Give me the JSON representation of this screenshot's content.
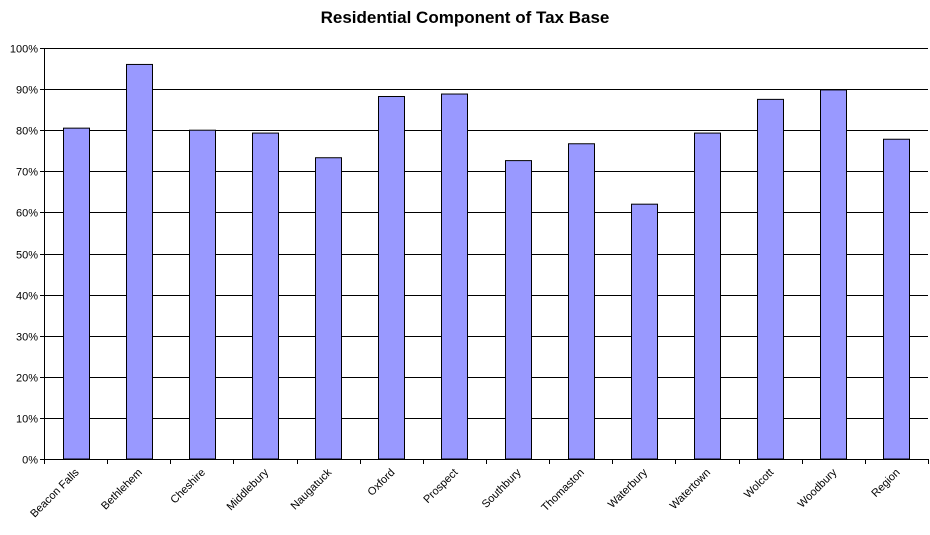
{
  "chart_data": {
    "type": "bar",
    "title": "Residential Component of Tax Base",
    "xlabel": "",
    "ylabel": "",
    "categories": [
      "Beacon Falls",
      "Bethlehem",
      "Cheshire",
      "Middlebury",
      "Naugatuck",
      "Oxford",
      "Prospect",
      "Southbury",
      "Thomaston",
      "Waterbury",
      "Watertown",
      "Wolcott",
      "Woodbury",
      "Region"
    ],
    "values": [
      80.5,
      96,
      80,
      79.3,
      73.3,
      88.2,
      88.8,
      72.6,
      76.7,
      62,
      79.3,
      87.5,
      89.8,
      77.8
    ],
    "ylim": [
      0,
      100
    ],
    "yticks": [
      "0%",
      "10%",
      "20%",
      "30%",
      "40%",
      "50%",
      "60%",
      "70%",
      "80%",
      "90%",
      "100%"
    ],
    "grid": true,
    "legend": "none",
    "colors": {
      "bar_fill": "#9999ff",
      "bar_stroke": "#000000",
      "gridline": "#000000",
      "text": "#000000"
    }
  }
}
